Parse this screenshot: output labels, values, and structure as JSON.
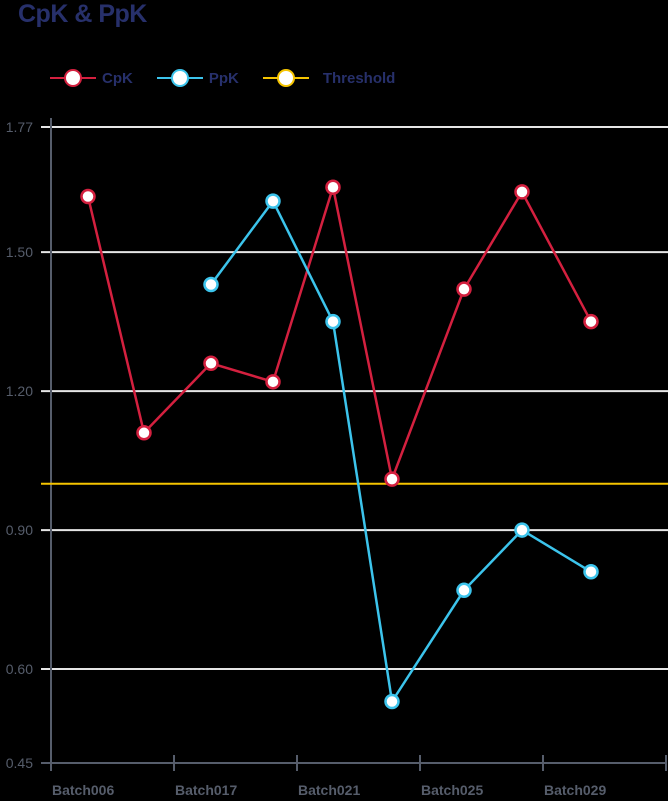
{
  "title": "CpK & PpK",
  "legend": [
    {
      "label": "CpK",
      "color": "#d4203f"
    },
    {
      "label": "PpK",
      "color": "#3cc4ec"
    },
    {
      "label": "Threshold",
      "color": "#f5c400"
    }
  ],
  "chart_data": {
    "type": "line",
    "title": "CpK & PpK",
    "xlabel": "",
    "ylabel": "",
    "ylim": [
      0.45,
      1.77
    ],
    "yticks": [
      1.77,
      1.5,
      1.2,
      0.9,
      0.6,
      0.45
    ],
    "ytick_labels": [
      "1.77",
      "1.50",
      "1.20",
      "0.90",
      "0.60",
      "0.45"
    ],
    "xtick_labels": [
      "Batch006",
      "Batch017",
      "Batch021",
      "Batch025",
      "Batch029"
    ],
    "grid": true,
    "legend_position": "top-left",
    "x_positions": [
      88,
      144,
      211,
      273,
      333,
      392,
      464,
      522,
      591
    ],
    "series": [
      {
        "name": "CpK",
        "color": "#d4203f",
        "values": [
          1.62,
          1.11,
          1.26,
          1.22,
          1.64,
          1.01,
          1.42,
          1.63,
          1.35
        ]
      },
      {
        "name": "PpK",
        "color": "#3cc4ec",
        "values": [
          null,
          null,
          1.43,
          1.61,
          1.35,
          0.53,
          0.77,
          0.9,
          0.81
        ]
      },
      {
        "name": "Threshold",
        "color": "#f5c400",
        "constant": 1.0
      }
    ]
  }
}
